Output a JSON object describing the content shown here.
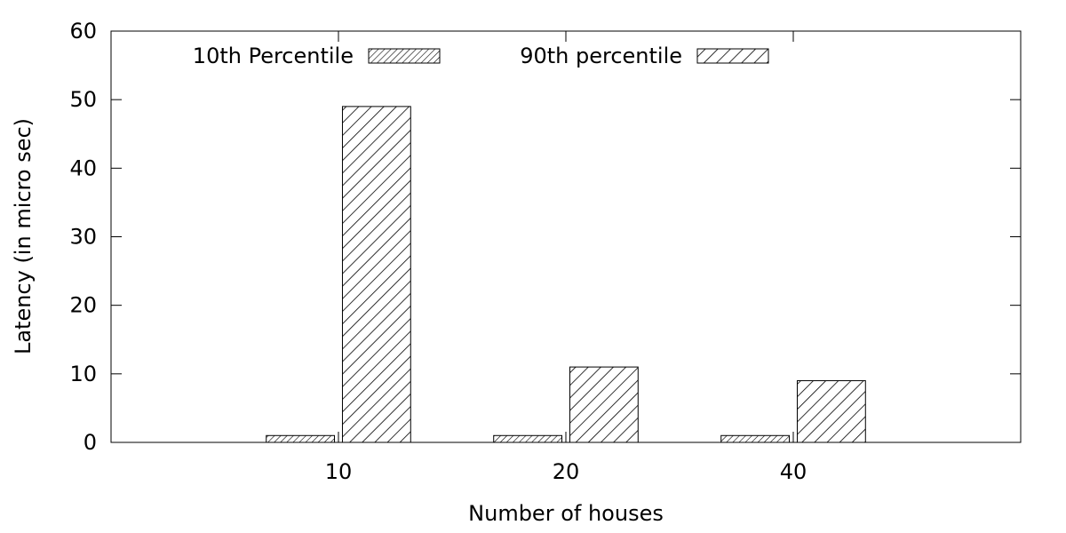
{
  "chart_data": {
    "type": "bar",
    "title": "",
    "xlabel": "Number of houses",
    "ylabel": "Latency (in micro sec)",
    "categories": [
      "10",
      "20",
      "40"
    ],
    "series": [
      {
        "name": "10th Percentile",
        "values": [
          1,
          1,
          1
        ],
        "pattern": "fine-diagonal-hatch"
      },
      {
        "name": "90th percentile",
        "values": [
          49,
          11,
          9
        ],
        "pattern": "coarse-diagonal-hatch"
      }
    ],
    "ylim": [
      0,
      60
    ],
    "yticks": [
      "0",
      "10",
      "20",
      "30",
      "40",
      "50",
      "60"
    ],
    "grid": false,
    "legend_position": "top",
    "colors": {
      "stroke": "#000000",
      "background": "#ffffff"
    }
  }
}
